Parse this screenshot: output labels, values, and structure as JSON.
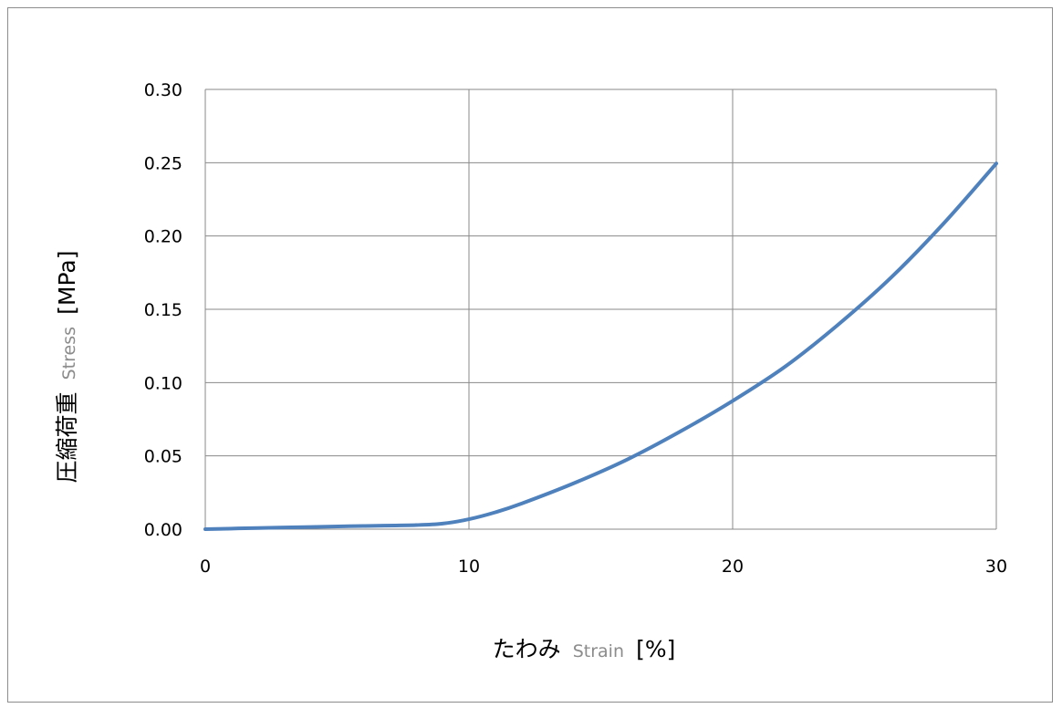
{
  "chart_data": {
    "type": "line",
    "title": "",
    "xlabel": {
      "jp": "たわみ",
      "en": "Strain",
      "unit": "[%]"
    },
    "ylabel": {
      "jp": "圧縮荷重",
      "en": "Stress",
      "unit": "[MPa]"
    },
    "xlim": [
      0,
      30
    ],
    "ylim": [
      0,
      0.3
    ],
    "x_ticks": [
      0,
      10,
      20,
      30
    ],
    "x_tick_labels": [
      "0",
      "10",
      "20",
      "30"
    ],
    "y_ticks": [
      0,
      0.05,
      0.1,
      0.15,
      0.2,
      0.25,
      0.3
    ],
    "y_tick_labels": [
      "0.00",
      "0.05",
      "0.10",
      "0.15",
      "0.20",
      "0.25",
      "0.30"
    ],
    "grid": true,
    "legend": "none",
    "series": [
      {
        "color": "#4f81bd",
        "x": [
          0,
          2,
          4,
          6,
          8,
          9,
          10,
          11,
          12,
          14,
          16,
          18,
          20,
          22,
          24,
          26,
          28,
          30
        ],
        "y": [
          0,
          0.0008,
          0.0015,
          0.0022,
          0.0028,
          0.0038,
          0.0068,
          0.0115,
          0.0175,
          0.0315,
          0.0475,
          0.0665,
          0.0875,
          0.111,
          0.1395,
          0.1715,
          0.2085,
          0.2495
        ]
      }
    ]
  }
}
